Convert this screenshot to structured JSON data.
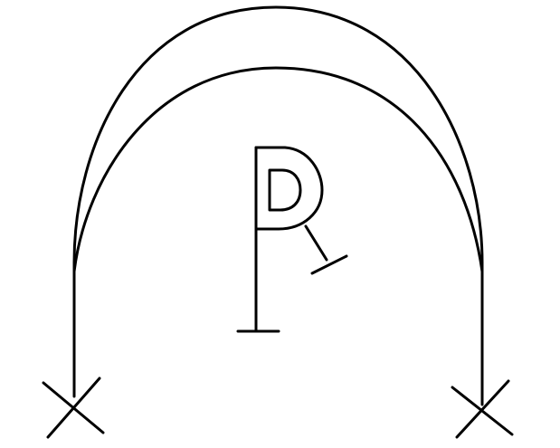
{
  "diagram": {
    "kind": "hand-drawn sketch",
    "description_elements": [
      "outer-arch",
      "inner-arch",
      "left-x-mark",
      "right-x-mark",
      "chi-rho-symbol"
    ],
    "colors": {
      "background": "#ffffff",
      "ink": "#000000"
    }
  }
}
